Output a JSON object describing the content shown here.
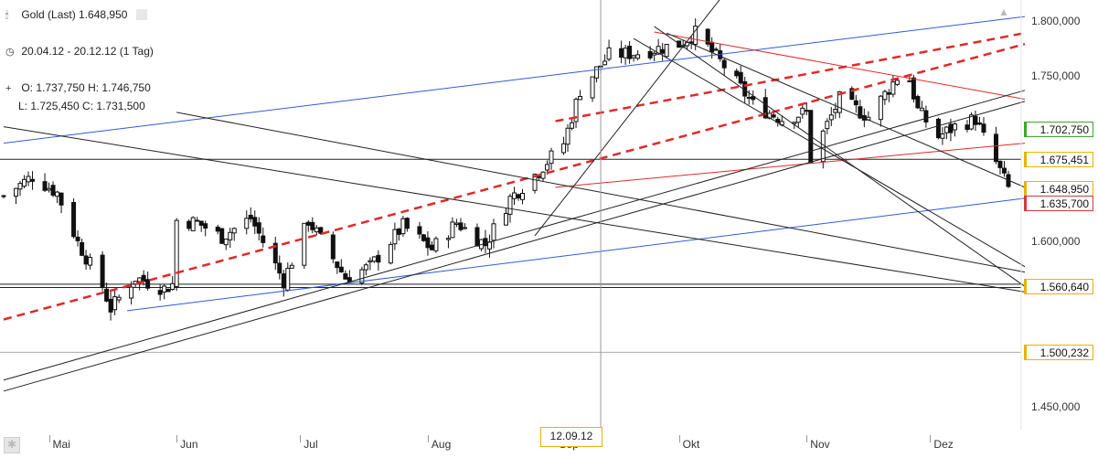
{
  "header": {
    "symbol_icon": "candlestick-icon",
    "title": "Gold (Last) 1.648,950",
    "range_icon": "clock-icon",
    "range": "20.04.12 - 20.12.12 (1 Tag)",
    "ohlc_icon": "crosshair-icon",
    "ohlc_line1": "O: 1.737,750 H: 1.746,750",
    "ohlc_line2": "L:  1.725,450 C: 1.731,500"
  },
  "crosshair_date": "12.09.12",
  "chart_data": {
    "type": "candlestick",
    "title": "Gold (Last)",
    "x_range": [
      "2012-04-20",
      "2012-12-20"
    ],
    "interval": "1 Tag",
    "y_range": [
      1430,
      1820
    ],
    "y_ticks": [
      "1.800,000",
      "1.750,000",
      "1.600,000",
      "1.450,000"
    ],
    "y_tick_values": [
      1800,
      1750,
      1600,
      1450
    ],
    "x_ticks": [
      {
        "label": "Mai",
        "date": "2012-05-01"
      },
      {
        "label": "Jun",
        "date": "2012-06-01"
      },
      {
        "label": "Jul",
        "date": "2012-07-01"
      },
      {
        "label": "Aug",
        "date": "2012-08-01"
      },
      {
        "label": "Sep",
        "date": "2012-09-01"
      },
      {
        "label": "Okt",
        "date": "2012-10-01"
      },
      {
        "label": "Nov",
        "date": "2012-11-01"
      },
      {
        "label": "Dez",
        "date": "2012-12-01"
      }
    ],
    "price_labels": [
      {
        "label": "1.702,750",
        "value": 1702.75,
        "color": "#3aa82a"
      },
      {
        "label": "1.675,451",
        "value": 1675.451,
        "color": "#e8b200"
      },
      {
        "label": "1.648,950",
        "value": 1648.95,
        "color": "#e8b200"
      },
      {
        "label": "1.635,700",
        "value": 1635.7,
        "color": "#d23a3a"
      },
      {
        "label": "1.560,640",
        "value": 1560.64,
        "color": "#e8b200"
      },
      {
        "label": "1.500,232",
        "value": 1500.232,
        "color": "#e8b200"
      }
    ],
    "close_anchors": [
      [
        "2012-04-20",
        1642
      ],
      [
        "2012-04-27",
        1660
      ],
      [
        "2012-05-03",
        1645
      ],
      [
        "2012-05-08",
        1600
      ],
      [
        "2012-05-14",
        1560
      ],
      [
        "2012-05-16",
        1540
      ],
      [
        "2012-05-22",
        1568
      ],
      [
        "2012-05-29",
        1558
      ],
      [
        "2012-05-31",
        1562
      ],
      [
        "2012-06-01",
        1620
      ],
      [
        "2012-06-06",
        1618
      ],
      [
        "2012-06-12",
        1605
      ],
      [
        "2012-06-19",
        1622
      ],
      [
        "2012-06-27",
        1565
      ],
      [
        "2012-07-03",
        1620
      ],
      [
        "2012-07-12",
        1568
      ],
      [
        "2012-07-18",
        1578
      ],
      [
        "2012-07-26",
        1615
      ],
      [
        "2012-08-02",
        1594
      ],
      [
        "2012-08-08",
        1618
      ],
      [
        "2012-08-15",
        1598
      ],
      [
        "2012-08-21",
        1640
      ],
      [
        "2012-08-28",
        1665
      ],
      [
        "2012-09-03",
        1690
      ],
      [
        "2012-09-07",
        1738
      ],
      [
        "2012-09-14",
        1770
      ],
      [
        "2012-09-21",
        1772
      ],
      [
        "2012-10-01",
        1780
      ],
      [
        "2012-10-05",
        1790
      ],
      [
        "2012-10-12",
        1760
      ],
      [
        "2012-10-19",
        1725
      ],
      [
        "2012-10-26",
        1712
      ],
      [
        "2012-11-01",
        1718
      ],
      [
        "2012-11-02",
        1676
      ],
      [
        "2012-11-09",
        1730
      ],
      [
        "2012-11-16",
        1714
      ],
      [
        "2012-11-23",
        1750
      ],
      [
        "2012-11-26",
        1748
      ],
      [
        "2012-11-28",
        1720
      ],
      [
        "2012-12-03",
        1696
      ],
      [
        "2012-12-07",
        1705
      ],
      [
        "2012-12-12",
        1712
      ],
      [
        "2012-12-14",
        1695
      ],
      [
        "2012-12-18",
        1665
      ],
      [
        "2012-12-20",
        1649
      ]
    ],
    "trendlines": [
      {
        "color": "#2f5bd8",
        "dash": false,
        "from": [
          "2012-04-20",
          1690
        ],
        "to": [
          "2012-12-24",
          1805
        ]
      },
      {
        "color": "#2f5bd8",
        "dash": false,
        "from": [
          "2012-05-20",
          1538
        ],
        "to": [
          "2012-12-24",
          1640
        ]
      },
      {
        "color": "#e02a2a",
        "dash": true,
        "from": [
          "2012-04-20",
          1530
        ],
        "to": [
          "2012-12-24",
          1780
        ]
      },
      {
        "color": "#e02a2a",
        "dash": true,
        "from": [
          "2012-09-01",
          1710
        ],
        "to": [
          "2012-12-24",
          1790
        ]
      },
      {
        "color": "#e02a2a",
        "dash": false,
        "from": [
          "2012-09-01",
          1650
        ],
        "to": [
          "2012-12-24",
          1690
        ]
      },
      {
        "color": "#e02a2a",
        "dash": false,
        "from": [
          "2012-09-25",
          1791
        ],
        "to": [
          "2012-12-24",
          1730
        ]
      },
      {
        "color": "#222222",
        "dash": false,
        "from": [
          "2012-04-20",
          1465
        ],
        "to": [
          "2012-12-24",
          1728
        ]
      },
      {
        "color": "#222222",
        "dash": false,
        "from": [
          "2012-04-20",
          1475
        ],
        "to": [
          "2012-12-24",
          1738
        ]
      },
      {
        "color": "#222222",
        "dash": false,
        "from": [
          "2012-04-20",
          1705
        ],
        "to": [
          "2012-12-24",
          1555
        ]
      },
      {
        "color": "#222222",
        "dash": false,
        "from": [
          "2012-06-01",
          1718
        ],
        "to": [
          "2012-12-24",
          1573
        ]
      },
      {
        "color": "#222222",
        "dash": false,
        "from": [
          "2012-09-25",
          1796
        ],
        "to": [
          "2012-12-24",
          1560
        ]
      },
      {
        "color": "#222222",
        "dash": false,
        "from": [
          "2012-09-20",
          1785
        ],
        "to": [
          "2012-12-24",
          1578
        ]
      },
      {
        "color": "#222222",
        "dash": false,
        "from": [
          "2012-09-28",
          1790
        ],
        "to": [
          "2012-12-24",
          1650
        ]
      },
      {
        "color": "#222222",
        "dash": false,
        "from": [
          "2012-08-27",
          1606
        ],
        "to": [
          "2012-10-15",
          1840
        ]
      }
    ],
    "horizontal_lines": [
      {
        "value": 1675.451,
        "color": "#222222",
        "width": 1
      },
      {
        "value": 1562,
        "color": "#222222",
        "width": 1
      },
      {
        "value": 1559,
        "color": "#222222",
        "width": 1
      },
      {
        "value": 1500.232,
        "color": "#aaaaaa",
        "width": 1
      }
    ],
    "crosshair_x_date": "2012-09-12"
  }
}
